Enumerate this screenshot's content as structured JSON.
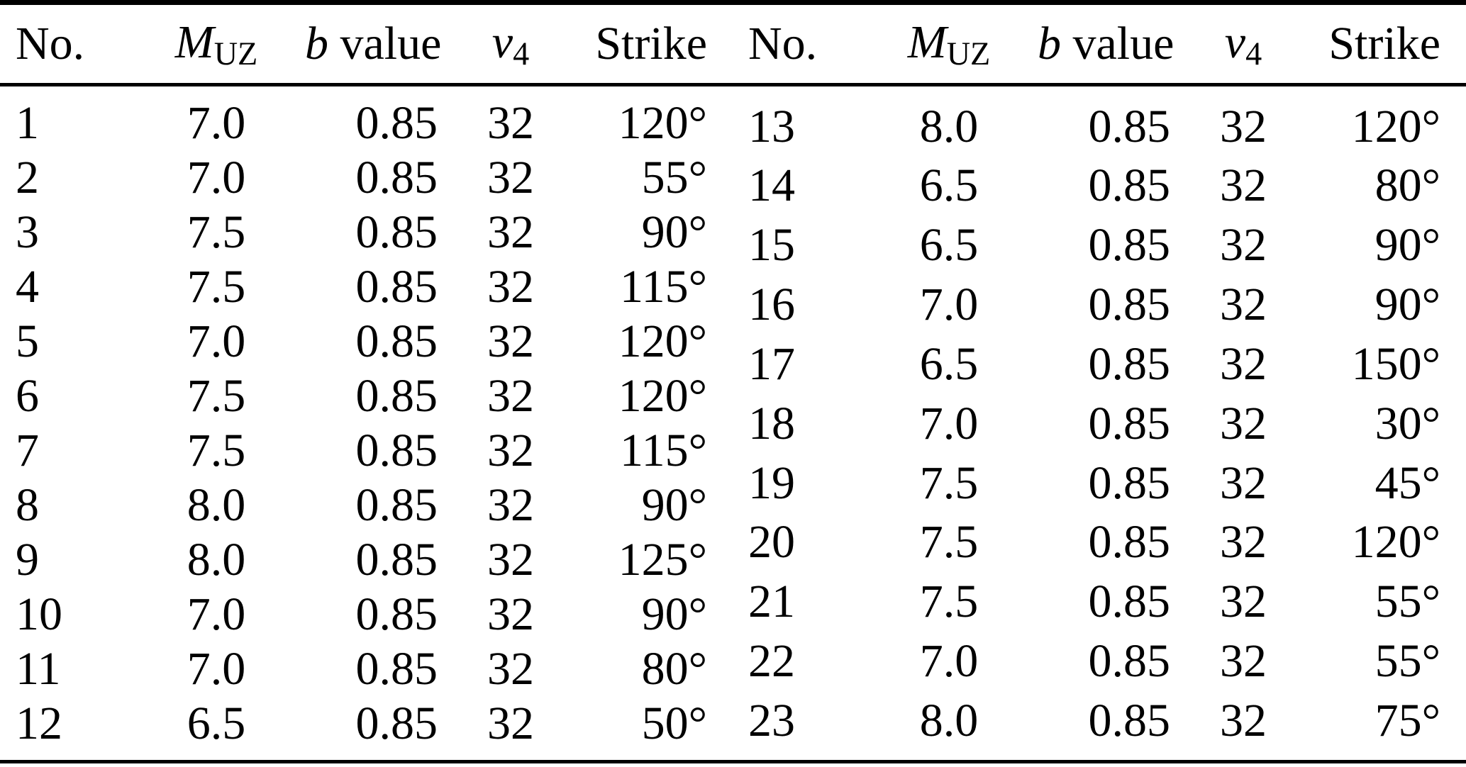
{
  "table": {
    "headers": {
      "no": "No.",
      "muz_main": "M",
      "muz_sub": "UZ",
      "b_italic": "b",
      "b_rest": " value",
      "v4_main": "ν",
      "v4_sub": "4",
      "strike": "Strike"
    },
    "left_rows": [
      {
        "no": "1",
        "muz": "7.0",
        "b": "0.85",
        "v4": "32",
        "strike": "120°"
      },
      {
        "no": "2",
        "muz": "7.0",
        "b": "0.85",
        "v4": "32",
        "strike": "55°"
      },
      {
        "no": "3",
        "muz": "7.5",
        "b": "0.85",
        "v4": "32",
        "strike": "90°"
      },
      {
        "no": "4",
        "muz": "7.5",
        "b": "0.85",
        "v4": "32",
        "strike": "115°"
      },
      {
        "no": "5",
        "muz": "7.0",
        "b": "0.85",
        "v4": "32",
        "strike": "120°"
      },
      {
        "no": "6",
        "muz": "7.5",
        "b": "0.85",
        "v4": "32",
        "strike": "120°"
      },
      {
        "no": "7",
        "muz": "7.5",
        "b": "0.85",
        "v4": "32",
        "strike": "115°"
      },
      {
        "no": "8",
        "muz": "8.0",
        "b": "0.85",
        "v4": "32",
        "strike": "90°"
      },
      {
        "no": "9",
        "muz": "8.0",
        "b": "0.85",
        "v4": "32",
        "strike": "125°"
      },
      {
        "no": "10",
        "muz": "7.0",
        "b": "0.85",
        "v4": "32",
        "strike": "90°"
      },
      {
        "no": "11",
        "muz": "7.0",
        "b": "0.85",
        "v4": "32",
        "strike": "80°"
      },
      {
        "no": "12",
        "muz": "6.5",
        "b": "0.85",
        "v4": "32",
        "strike": "50°"
      }
    ],
    "right_rows": [
      {
        "no": "13",
        "muz": "8.0",
        "b": "0.85",
        "v4": "32",
        "strike": "120°"
      },
      {
        "no": "14",
        "muz": "6.5",
        "b": "0.85",
        "v4": "32",
        "strike": "80°"
      },
      {
        "no": "15",
        "muz": "6.5",
        "b": "0.85",
        "v4": "32",
        "strike": "90°"
      },
      {
        "no": "16",
        "muz": "7.0",
        "b": "0.85",
        "v4": "32",
        "strike": "90°"
      },
      {
        "no": "17",
        "muz": "6.5",
        "b": "0.85",
        "v4": "32",
        "strike": "150°"
      },
      {
        "no": "18",
        "muz": "7.0",
        "b": "0.85",
        "v4": "32",
        "strike": "30°"
      },
      {
        "no": "19",
        "muz": "7.5",
        "b": "0.85",
        "v4": "32",
        "strike": "45°"
      },
      {
        "no": "20",
        "muz": "7.5",
        "b": "0.85",
        "v4": "32",
        "strike": "120°"
      },
      {
        "no": "21",
        "muz": "7.5",
        "b": "0.85",
        "v4": "32",
        "strike": "55°"
      },
      {
        "no": "22",
        "muz": "7.0",
        "b": "0.85",
        "v4": "32",
        "strike": "55°"
      },
      {
        "no": "23",
        "muz": "8.0",
        "b": "0.85",
        "v4": "32",
        "strike": "75°"
      }
    ]
  },
  "colors": {
    "text": "#000000",
    "background": "#ffffff",
    "rule": "#000000"
  }
}
